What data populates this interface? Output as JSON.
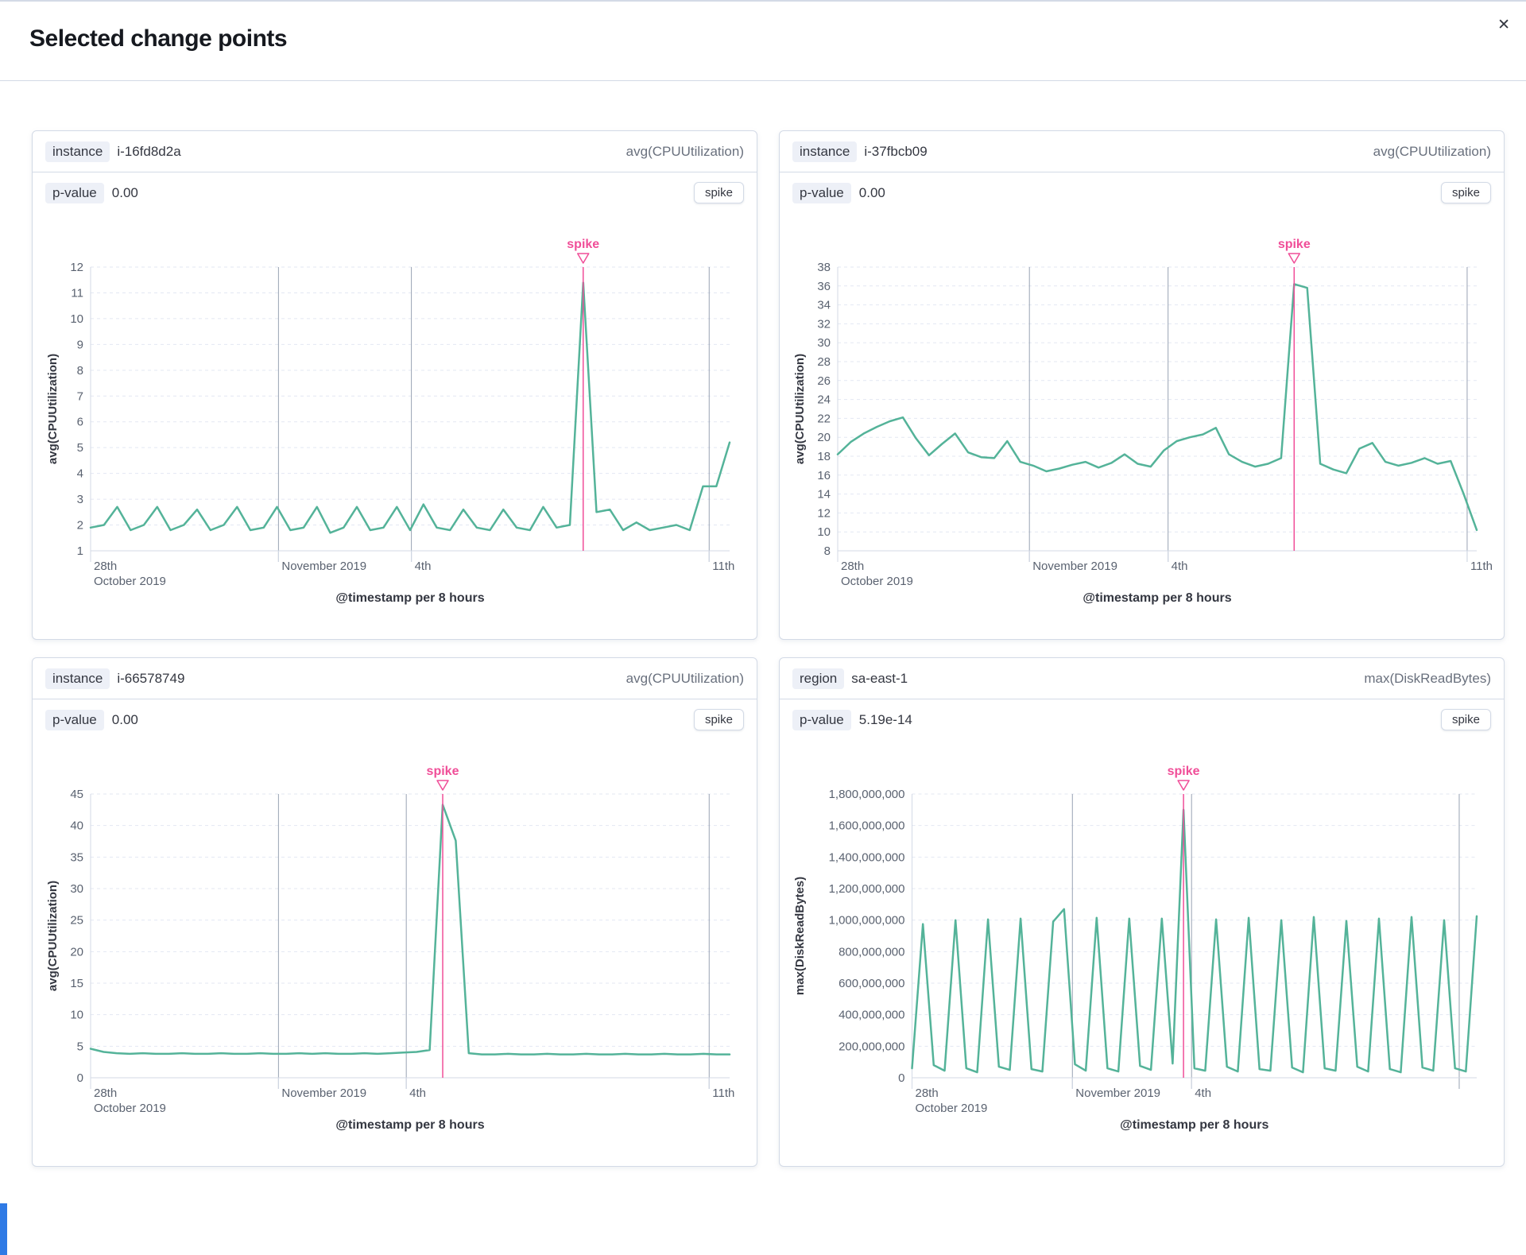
{
  "modal": {
    "title": "Selected change points",
    "close_glyph": "✕"
  },
  "colors": {
    "accent": "#F04E98",
    "series": "#54B399",
    "grid": "#E3E7F2",
    "vline": "#98A2B3",
    "axis": "#D3DAE6",
    "tick_text": "#5A6270",
    "title_text": "#343741",
    "badge_bg": "#EDF0F7"
  },
  "panels": [
    {
      "field_label": "instance",
      "field_value": "i-16fd8d2a",
      "metric": "avg(CPUUtilization)",
      "p_label": "p-value",
      "p_value": "0.00",
      "type_badge": "spike"
    },
    {
      "field_label": "instance",
      "field_value": "i-37fbcb09",
      "metric": "avg(CPUUtilization)",
      "p_label": "p-value",
      "p_value": "0.00",
      "type_badge": "spike"
    },
    {
      "field_label": "instance",
      "field_value": "i-66578749",
      "metric": "avg(CPUUtilization)",
      "p_label": "p-value",
      "p_value": "0.00",
      "type_badge": "spike"
    },
    {
      "field_label": "region",
      "field_value": "sa-east-1",
      "metric": "max(DiskReadBytes)",
      "p_label": "p-value",
      "p_value": "5.19e-14",
      "type_badge": "spike"
    }
  ],
  "chart_data": [
    {
      "type": "line",
      "series_name": "avg(CPUUtilization) i-16fd8d2a",
      "ylabel": "avg(CPUUtilization)",
      "xlabel": "@timestamp per 8 hours",
      "ylim": [
        1,
        12
      ],
      "yticks": [
        {
          "v": 1,
          "label": "1"
        },
        {
          "v": 2,
          "label": "2"
        },
        {
          "v": 3,
          "label": "3"
        },
        {
          "v": 4,
          "label": "4"
        },
        {
          "v": 5,
          "label": "5"
        },
        {
          "v": 6,
          "label": "6"
        },
        {
          "v": 7,
          "label": "7"
        },
        {
          "v": 8,
          "label": "8"
        },
        {
          "v": 9,
          "label": "9"
        },
        {
          "v": 10,
          "label": "10"
        },
        {
          "v": 11,
          "label": "11"
        },
        {
          "v": 12,
          "label": "12"
        }
      ],
      "values": [
        1.9,
        2.0,
        2.7,
        1.8,
        2.0,
        2.7,
        1.8,
        2.0,
        2.6,
        1.8,
        2.0,
        2.7,
        1.8,
        1.9,
        2.7,
        1.8,
        1.9,
        2.7,
        1.7,
        1.9,
        2.7,
        1.8,
        1.9,
        2.7,
        1.8,
        2.8,
        1.9,
        1.8,
        2.6,
        1.9,
        1.8,
        2.6,
        1.9,
        1.8,
        2.7,
        1.9,
        2.0,
        11.4,
        2.5,
        2.6,
        1.8,
        2.1,
        1.8,
        1.9,
        2.0,
        1.8,
        3.5,
        3.5,
        5.2
      ],
      "annotation": {
        "label": "spike",
        "type": "spike",
        "index": 37
      },
      "vlines": [
        0.294,
        0.502,
        0.968
      ],
      "xticks": [
        {
          "frac": 0,
          "lines": [
            "28th",
            "October 2019"
          ]
        },
        {
          "frac": 0.294,
          "lines": [
            "November 2019"
          ]
        },
        {
          "frac": 0.502,
          "lines": [
            "4th"
          ]
        },
        {
          "frac": 0.968,
          "lines": [
            "11th"
          ]
        }
      ],
      "grid": true,
      "legend": false
    },
    {
      "type": "line",
      "series_name": "avg(CPUUtilization) i-37fbcb09",
      "ylabel": "avg(CPUUtilization)",
      "xlabel": "@timestamp per 8 hours",
      "ylim": [
        8,
        38
      ],
      "yticks": [
        {
          "v": 8,
          "label": "8"
        },
        {
          "v": 10,
          "label": "10"
        },
        {
          "v": 12,
          "label": "12"
        },
        {
          "v": 14,
          "label": "14"
        },
        {
          "v": 16,
          "label": "16"
        },
        {
          "v": 18,
          "label": "18"
        },
        {
          "v": 20,
          "label": "20"
        },
        {
          "v": 22,
          "label": "22"
        },
        {
          "v": 24,
          "label": "24"
        },
        {
          "v": 26,
          "label": "26"
        },
        {
          "v": 28,
          "label": "28"
        },
        {
          "v": 30,
          "label": "30"
        },
        {
          "v": 32,
          "label": "32"
        },
        {
          "v": 34,
          "label": "34"
        },
        {
          "v": 36,
          "label": "36"
        },
        {
          "v": 38,
          "label": "38"
        }
      ],
      "values": [
        18.2,
        19.5,
        20.4,
        21.1,
        21.7,
        22.1,
        19.9,
        18.1,
        19.3,
        20.4,
        18.4,
        17.9,
        17.8,
        19.6,
        17.4,
        17.0,
        16.4,
        16.7,
        17.1,
        17.4,
        16.8,
        17.3,
        18.2,
        17.2,
        16.9,
        18.6,
        19.6,
        20.0,
        20.3,
        21.0,
        18.2,
        17.4,
        16.9,
        17.2,
        17.8,
        36.2,
        35.8,
        17.2,
        16.6,
        16.2,
        18.8,
        19.4,
        17.4,
        17.0,
        17.3,
        17.8,
        17.2,
        17.5,
        14.0,
        10.2
      ],
      "annotation": {
        "label": "spike",
        "type": "spike",
        "index": 35
      },
      "vlines": [
        0.3,
        0.517,
        0.985
      ],
      "xticks": [
        {
          "frac": 0,
          "lines": [
            "28th",
            "October 2019"
          ]
        },
        {
          "frac": 0.3,
          "lines": [
            "November 2019"
          ]
        },
        {
          "frac": 0.517,
          "lines": [
            "4th"
          ]
        },
        {
          "frac": 0.985,
          "lines": [
            "11th"
          ]
        }
      ],
      "grid": true,
      "legend": false
    },
    {
      "type": "line",
      "series_name": "avg(CPUUtilization) i-66578749",
      "ylabel": "avg(CPUUtilization)",
      "xlabel": "@timestamp per 8 hours",
      "ylim": [
        0,
        45
      ],
      "yticks": [
        {
          "v": 0,
          "label": "0"
        },
        {
          "v": 5,
          "label": "5"
        },
        {
          "v": 10,
          "label": "10"
        },
        {
          "v": 15,
          "label": "15"
        },
        {
          "v": 20,
          "label": "20"
        },
        {
          "v": 25,
          "label": "25"
        },
        {
          "v": 30,
          "label": "30"
        },
        {
          "v": 35,
          "label": "35"
        },
        {
          "v": 40,
          "label": "40"
        },
        {
          "v": 45,
          "label": "45"
        }
      ],
      "values": [
        4.6,
        4.1,
        3.9,
        3.8,
        3.9,
        3.8,
        3.8,
        3.9,
        3.8,
        3.8,
        3.9,
        3.8,
        3.8,
        3.9,
        3.8,
        3.8,
        3.9,
        3.8,
        3.9,
        3.8,
        3.8,
        3.9,
        3.8,
        3.9,
        4.0,
        4.1,
        4.4,
        43.3,
        37.6,
        3.9,
        3.7,
        3.7,
        3.8,
        3.7,
        3.7,
        3.8,
        3.7,
        3.7,
        3.8,
        3.7,
        3.7,
        3.8,
        3.7,
        3.7,
        3.8,
        3.7,
        3.7,
        3.8,
        3.7,
        3.7
      ],
      "annotation": {
        "label": "spike",
        "type": "spike",
        "index": 27
      },
      "vlines": [
        0.294,
        0.494,
        0.968
      ],
      "xticks": [
        {
          "frac": 0,
          "lines": [
            "28th",
            "October 2019"
          ]
        },
        {
          "frac": 0.294,
          "lines": [
            "November 2019"
          ]
        },
        {
          "frac": 0.494,
          "lines": [
            "4th"
          ]
        },
        {
          "frac": 0.968,
          "lines": [
            "11th"
          ]
        }
      ],
      "grid": true,
      "legend": false
    },
    {
      "type": "line",
      "series_name": "max(DiskReadBytes) sa-east-1",
      "ylabel": "max(DiskReadBytes)",
      "xlabel": "@timestamp per 8 hours",
      "ylim": [
        0,
        1800000000
      ],
      "yticks": [
        {
          "v": 0,
          "label": "0"
        },
        {
          "v": 200000000,
          "label": "200,000,000"
        },
        {
          "v": 400000000,
          "label": "400,000,000"
        },
        {
          "v": 600000000,
          "label": "600,000,000"
        },
        {
          "v": 800000000,
          "label": "800,000,000"
        },
        {
          "v": 1000000000,
          "label": "1,000,000,000"
        },
        {
          "v": 1200000000,
          "label": "1,200,000,000"
        },
        {
          "v": 1400000000,
          "label": "1,400,000,000"
        },
        {
          "v": 1600000000,
          "label": "1,600,000,000"
        },
        {
          "v": 1800000000,
          "label": "1,800,000,000"
        }
      ],
      "values": [
        60000000,
        975000000,
        80000000,
        45000000,
        1000000000,
        60000000,
        35000000,
        1005000000,
        70000000,
        50000000,
        1010000000,
        55000000,
        40000000,
        990000000,
        1070000000,
        85000000,
        45000000,
        1015000000,
        60000000,
        40000000,
        1010000000,
        75000000,
        50000000,
        1010000000,
        90000000,
        1700000000,
        60000000,
        45000000,
        1005000000,
        70000000,
        40000000,
        1015000000,
        55000000,
        45000000,
        1000000000,
        65000000,
        35000000,
        1020000000,
        60000000,
        45000000,
        995000000,
        70000000,
        40000000,
        1010000000,
        55000000,
        35000000,
        1020000000,
        65000000,
        45000000,
        1000000000,
        60000000,
        40000000,
        1025000000
      ],
      "annotation": {
        "label": "spike",
        "type": "spike",
        "index": 25
      },
      "vlines": [
        0.284,
        0.495,
        0.969
      ],
      "xticks": [
        {
          "frac": 0,
          "lines": [
            "28th",
            "October 2019"
          ]
        },
        {
          "frac": 0.284,
          "lines": [
            "November 2019"
          ]
        },
        {
          "frac": 0.495,
          "lines": [
            "4th"
          ]
        }
      ],
      "grid": true,
      "legend": false
    }
  ]
}
